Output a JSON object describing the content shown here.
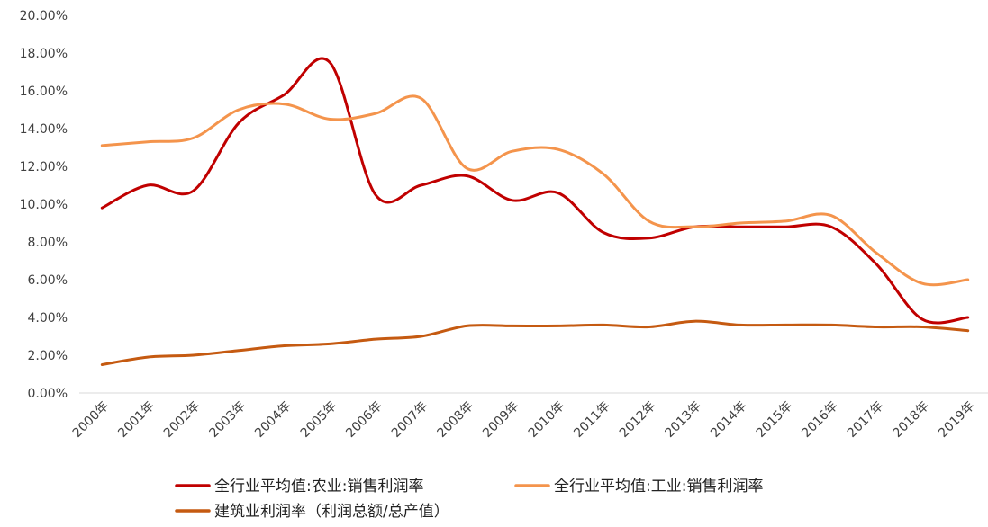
{
  "chart_data": {
    "type": "line",
    "categories": [
      "2000年",
      "2001年",
      "2002年",
      "2003年",
      "2004年",
      "2005年",
      "2006年",
      "2007年",
      "2008年",
      "2009年",
      "2010年",
      "2011年",
      "2012年",
      "2013年",
      "2014年",
      "2015年",
      "2016年",
      "2017年",
      "2018年",
      "2019年"
    ],
    "y_ticks": [
      "0.00%",
      "2.00%",
      "4.00%",
      "6.00%",
      "8.00%",
      "10.00%",
      "12.00%",
      "14.00%",
      "16.00%",
      "18.00%",
      "20.00%"
    ],
    "ylim": [
      0,
      20
    ],
    "grid": false,
    "legend_position": "bottom",
    "series": [
      {
        "name": "全行业平均值:农业:销售利润率",
        "color": "#C00000",
        "values": [
          9.8,
          11.0,
          10.7,
          14.3,
          15.8,
          17.5,
          10.5,
          11.0,
          11.5,
          10.2,
          10.6,
          8.5,
          8.2,
          8.8,
          8.8,
          8.8,
          8.8,
          6.8,
          3.9,
          4.0
        ]
      },
      {
        "name": "全行业平均值:工业:销售利润率",
        "color": "#F4944C",
        "values": [
          13.1,
          13.3,
          13.5,
          15.0,
          15.3,
          14.5,
          14.8,
          15.6,
          11.9,
          12.8,
          12.9,
          11.6,
          9.1,
          8.8,
          9.0,
          9.1,
          9.4,
          7.4,
          5.8,
          6.0
        ]
      },
      {
        "name": "建筑业利润率（利润总额/总产值）",
        "color": "#C55A11",
        "values": [
          1.5,
          1.9,
          2.0,
          2.25,
          2.5,
          2.6,
          2.85,
          3.0,
          3.55,
          3.55,
          3.55,
          3.6,
          3.5,
          3.8,
          3.6,
          3.6,
          3.6,
          3.5,
          3.5,
          3.3
        ]
      }
    ]
  }
}
